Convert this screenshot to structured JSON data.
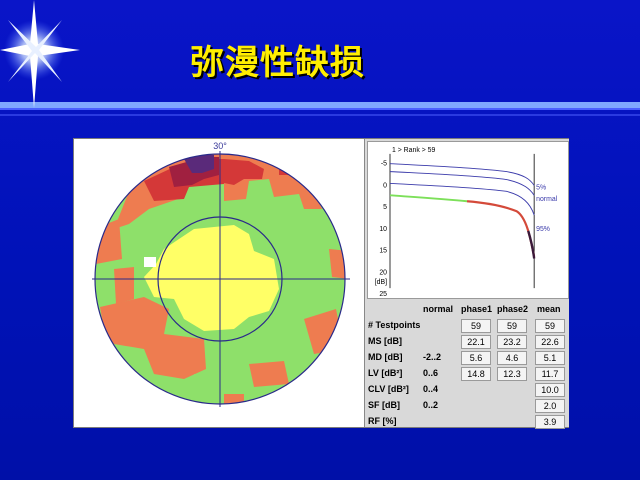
{
  "slide": {
    "title": "弥漫性缺损",
    "colors": {
      "title": "#ffee00",
      "background": "#0012b8"
    }
  },
  "visual_field": {
    "angle_label": "30°",
    "scale_colors": {
      "green": "#8ee06a",
      "yellow": "#ffff66",
      "orange": "#ee7c50",
      "red": "#d43838",
      "dark_red": "#a02040",
      "purple": "#5a2a7a"
    }
  },
  "bebie_curve": {
    "rank_label": "1     >   Rank   >        59",
    "y_ticks": [
      "-5",
      "0",
      "5",
      "10",
      "15",
      "20",
      "25"
    ],
    "y_unit": "[dB]",
    "labels": [
      "5%",
      "normal",
      "95%"
    ]
  },
  "table": {
    "headers": [
      "normal",
      "phase1",
      "phase2",
      "mean"
    ],
    "rows": [
      {
        "label": "# Testpoints",
        "normal": "",
        "phase1": "59",
        "phase2": "59",
        "mean": "59"
      },
      {
        "label": "MS [dB]",
        "normal": "",
        "phase1": "22.1",
        "phase2": "23.2",
        "mean": "22.6"
      },
      {
        "label": "MD [dB]",
        "normal": "-2..2",
        "phase1": "5.6",
        "phase2": "4.6",
        "mean": "5.1"
      },
      {
        "label": "LV [dB²]",
        "normal": "0..6",
        "phase1": "14.8",
        "phase2": "12.3",
        "mean": "11.7"
      },
      {
        "label": "CLV [dB²]",
        "normal": "0..4",
        "phase1": "",
        "phase2": "",
        "mean": "10.0"
      },
      {
        "label": "SF [dB]",
        "normal": "0..2",
        "phase1": "",
        "phase2": "",
        "mean": "2.0"
      },
      {
        "label": "RF [%]",
        "normal": "",
        "phase1": "",
        "phase2": "",
        "mean": "3.9"
      }
    ]
  }
}
